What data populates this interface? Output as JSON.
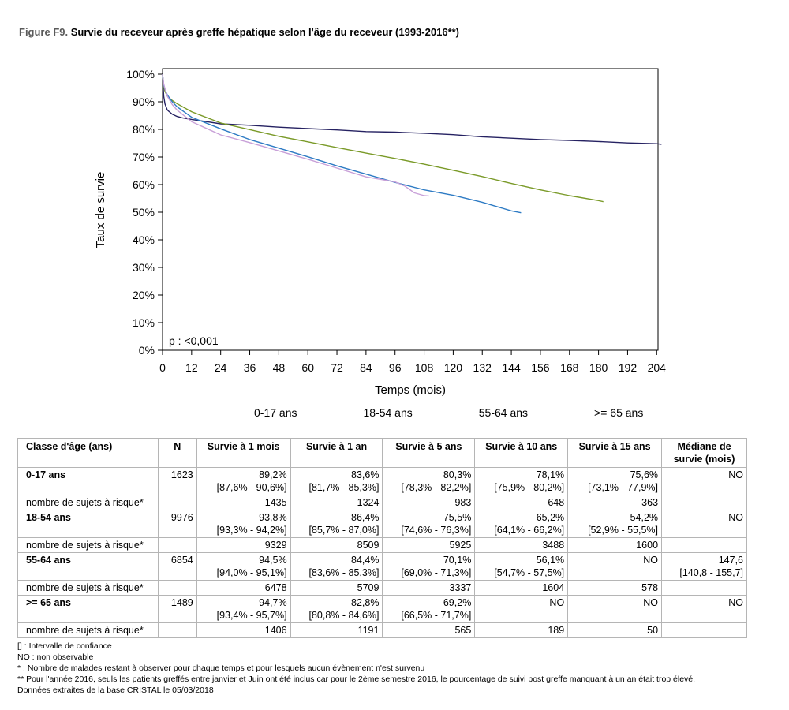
{
  "figure": {
    "label": "Figure F9.",
    "title": "Survie du receveur après greffe hépatique selon l'âge du receveur (1993-2016**)"
  },
  "chart_data": {
    "type": "line",
    "xlabel": "Temps (mois)",
    "ylabel": "Taux de survie",
    "xlim": [
      0,
      204
    ],
    "ylim": [
      0,
      100
    ],
    "x_ticks": [
      "0",
      "12",
      "24",
      "36",
      "48",
      "60",
      "72",
      "84",
      "96",
      "108",
      "120",
      "132",
      "144",
      "156",
      "168",
      "180",
      "192",
      "204"
    ],
    "y_ticks": [
      "0%",
      "10%",
      "20%",
      "30%",
      "40%",
      "50%",
      "60%",
      "70%",
      "80%",
      "90%",
      "100%"
    ],
    "annotation": "p : <0,001",
    "legend_position": "bottom",
    "grid": false,
    "series": [
      {
        "name": "0-17 ans",
        "color": "#262262",
        "points": [
          [
            0,
            100
          ],
          [
            0.5,
            92
          ],
          [
            1,
            89.2
          ],
          [
            2,
            87
          ],
          [
            4,
            85.5
          ],
          [
            6,
            84.7
          ],
          [
            8,
            84.2
          ],
          [
            12,
            83.6
          ],
          [
            24,
            82
          ],
          [
            36,
            81.5
          ],
          [
            48,
            80.8
          ],
          [
            60,
            80.3
          ],
          [
            72,
            79.8
          ],
          [
            84,
            79.2
          ],
          [
            96,
            79
          ],
          [
            108,
            78.6
          ],
          [
            120,
            78.1
          ],
          [
            132,
            77.3
          ],
          [
            144,
            76.8
          ],
          [
            156,
            76.3
          ],
          [
            168,
            76
          ],
          [
            180,
            75.6
          ],
          [
            192,
            75.1
          ],
          [
            204,
            74.8
          ],
          [
            206,
            74.6
          ]
        ]
      },
      {
        "name": "18-54 ans",
        "color": "#7a9a28",
        "points": [
          [
            0,
            100
          ],
          [
            0.5,
            95.5
          ],
          [
            1,
            93.8
          ],
          [
            2,
            92
          ],
          [
            4,
            90.5
          ],
          [
            6,
            89.3
          ],
          [
            12,
            86.4
          ],
          [
            24,
            82.3
          ],
          [
            36,
            79.9
          ],
          [
            48,
            77.5
          ],
          [
            60,
            75.5
          ],
          [
            72,
            73.4
          ],
          [
            84,
            71.4
          ],
          [
            96,
            69.5
          ],
          [
            108,
            67.4
          ],
          [
            120,
            65.2
          ],
          [
            132,
            62.9
          ],
          [
            144,
            60.4
          ],
          [
            156,
            58.1
          ],
          [
            168,
            56
          ],
          [
            180,
            54.2
          ],
          [
            182,
            53.8
          ]
        ]
      },
      {
        "name": "55-64 ans",
        "color": "#2e7bc4",
        "points": [
          [
            0,
            100
          ],
          [
            0.5,
            96
          ],
          [
            1,
            94.5
          ],
          [
            2,
            92.5
          ],
          [
            4,
            90
          ],
          [
            6,
            88.2
          ],
          [
            12,
            84.4
          ],
          [
            24,
            80.2
          ],
          [
            36,
            76.3
          ],
          [
            48,
            73.2
          ],
          [
            60,
            70.1
          ],
          [
            72,
            66.8
          ],
          [
            84,
            63.8
          ],
          [
            96,
            60.8
          ],
          [
            108,
            58.1
          ],
          [
            120,
            56.1
          ],
          [
            132,
            53.6
          ],
          [
            144,
            50.5
          ],
          [
            148,
            49.8
          ]
        ]
      },
      {
        "name": ">= 65 ans",
        "color": "#c8a0d8",
        "points": [
          [
            0,
            100
          ],
          [
            0.5,
            96.5
          ],
          [
            1,
            94.7
          ],
          [
            2,
            92
          ],
          [
            4,
            89
          ],
          [
            6,
            87
          ],
          [
            12,
            82.8
          ],
          [
            24,
            78
          ],
          [
            36,
            75.2
          ],
          [
            48,
            72.2
          ],
          [
            60,
            69.2
          ],
          [
            72,
            66
          ],
          [
            84,
            62.8
          ],
          [
            96,
            61
          ],
          [
            100,
            59.5
          ],
          [
            104,
            57
          ],
          [
            108,
            56
          ],
          [
            110,
            55.9
          ]
        ]
      }
    ]
  },
  "legend": {
    "items": [
      {
        "label": "0-17 ans",
        "color": "#262262"
      },
      {
        "label": "18-54 ans",
        "color": "#7a9a28"
      },
      {
        "label": "55-64 ans",
        "color": "#2e7bc4"
      },
      {
        "label": ">= 65 ans",
        "color": "#c8a0d8"
      }
    ]
  },
  "table": {
    "headers": [
      "Classe d'âge (ans)",
      "N",
      "Survie à 1 mois",
      "Survie à 1 an",
      "Survie à 5 ans",
      "Survie à 10 ans",
      "Survie à 15 ans",
      "Médiane de survie (mois)"
    ],
    "risk_label": "nombre de sujets à risque*",
    "groups": [
      {
        "label": "0-17 ans",
        "n": "1623",
        "values": [
          [
            "89,2%",
            "[87,6% - 90,6%]"
          ],
          [
            "83,6%",
            "[81,7% - 85,3%]"
          ],
          [
            "80,3%",
            "[78,3% - 82,2%]"
          ],
          [
            "78,1%",
            "[75,9% - 80,2%]"
          ],
          [
            "75,6%",
            "[73,1% - 77,9%]"
          ]
        ],
        "median": [
          "NO",
          ""
        ],
        "risk": [
          "1435",
          "1324",
          "983",
          "648",
          "363"
        ]
      },
      {
        "label": "18-54 ans",
        "n": "9976",
        "values": [
          [
            "93,8%",
            "[93,3% - 94,2%]"
          ],
          [
            "86,4%",
            "[85,7% - 87,0%]"
          ],
          [
            "75,5%",
            "[74,6% - 76,3%]"
          ],
          [
            "65,2%",
            "[64,1% - 66,2%]"
          ],
          [
            "54,2%",
            "[52,9% - 55,5%]"
          ]
        ],
        "median": [
          "NO",
          ""
        ],
        "risk": [
          "9329",
          "8509",
          "5925",
          "3488",
          "1600"
        ]
      },
      {
        "label": "55-64 ans",
        "n": "6854",
        "values": [
          [
            "94,5%",
            "[94,0% - 95,1%]"
          ],
          [
            "84,4%",
            "[83,6% - 85,3%]"
          ],
          [
            "70,1%",
            "[69,0% - 71,3%]"
          ],
          [
            "56,1%",
            "[54,7% - 57,5%]"
          ],
          [
            "NO",
            ""
          ]
        ],
        "median": [
          "147,6",
          "[140,8 - 155,7]"
        ],
        "risk": [
          "6478",
          "5709",
          "3337",
          "1604",
          "578"
        ]
      },
      {
        "label": ">= 65 ans",
        "n": "1489",
        "values": [
          [
            "94,7%",
            "[93,4% - 95,7%]"
          ],
          [
            "82,8%",
            "[80,8% - 84,6%]"
          ],
          [
            "69,2%",
            "[66,5% - 71,7%]"
          ],
          [
            "NO",
            ""
          ],
          [
            "NO",
            ""
          ]
        ],
        "median": [
          "NO",
          ""
        ],
        "risk": [
          "1406",
          "1191",
          "565",
          "189",
          "50"
        ]
      }
    ]
  },
  "notes": [
    "[] : Intervalle de confiance",
    "NO : non observable",
    "* : Nombre de malades restant à observer pour chaque temps et pour lesquels aucun évènement n'est survenu",
    "** Pour l'année 2016, seuls les patients greffés entre janvier et Juin ont été inclus car pour le 2ème semestre 2016, le pourcentage de suivi post greffe manquant à un an était trop élevé.",
    "Données extraites de la base CRISTAL le 05/03/2018"
  ]
}
